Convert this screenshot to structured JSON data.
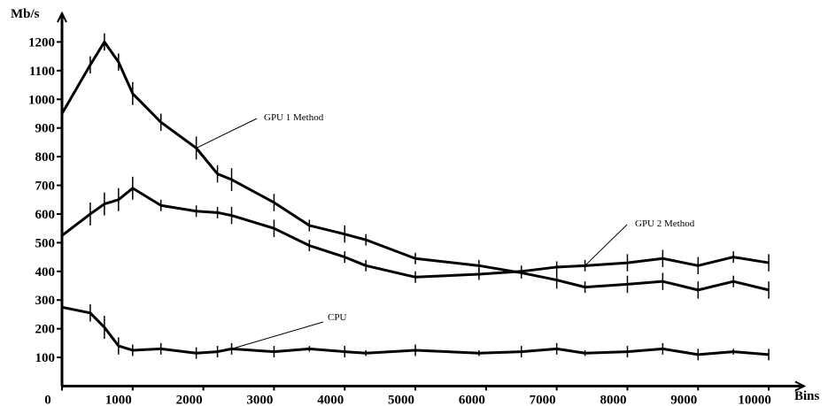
{
  "chart_data": {
    "type": "line",
    "y_label": "Mb/s",
    "x_label": "Bins",
    "x": [
      0,
      400,
      600,
      800,
      1000,
      1400,
      1900,
      2200,
      2400,
      3000,
      3500,
      4000,
      4300,
      5000,
      5900,
      6500,
      7000,
      7400,
      8000,
      8500,
      9000,
      9500,
      10000
    ],
    "series": [
      {
        "name": "GPU 1 Method",
        "color": "#000000",
        "values": [
          950,
          1120,
          1200,
          1130,
          1020,
          920,
          830,
          740,
          720,
          640,
          560,
          530,
          510,
          445,
          420,
          395,
          370,
          345,
          355,
          365,
          335,
          365,
          335
        ],
        "errors": [
          30,
          30,
          30,
          30,
          40,
          30,
          40,
          30,
          40,
          30,
          20,
          30,
          20,
          20,
          20,
          20,
          30,
          20,
          30,
          30,
          30,
          20,
          30
        ]
      },
      {
        "name": "GPU 2 Method",
        "color": "#000000",
        "values": [
          525,
          600,
          635,
          650,
          690,
          630,
          610,
          605,
          595,
          550,
          490,
          450,
          420,
          380,
          390,
          400,
          415,
          420,
          430,
          445,
          420,
          450,
          430
        ],
        "errors": [
          20,
          40,
          40,
          40,
          40,
          20,
          20,
          20,
          30,
          30,
          20,
          20,
          20,
          20,
          20,
          20,
          20,
          20,
          30,
          30,
          30,
          20,
          30
        ]
      },
      {
        "name": "CPU",
        "color": "#000000",
        "values": [
          275,
          255,
          205,
          140,
          125,
          130,
          115,
          120,
          130,
          120,
          130,
          120,
          115,
          125,
          115,
          120,
          130,
          115,
          120,
          130,
          110,
          120,
          110
        ],
        "errors": [
          10,
          30,
          40,
          30,
          20,
          20,
          20,
          20,
          20,
          20,
          10,
          20,
          10,
          20,
          10,
          20,
          20,
          10,
          20,
          20,
          20,
          10,
          20
        ]
      }
    ],
    "xlim": [
      0,
      10500
    ],
    "ylim": [
      0,
      1300
    ],
    "xticks": [
      0,
      1000,
      2000,
      3000,
      4000,
      5000,
      6000,
      7000,
      8000,
      9000,
      10000
    ],
    "yticks": [
      100,
      200,
      300,
      400,
      500,
      600,
      700,
      800,
      900,
      1000,
      1100,
      1200
    ],
    "grid": false
  }
}
